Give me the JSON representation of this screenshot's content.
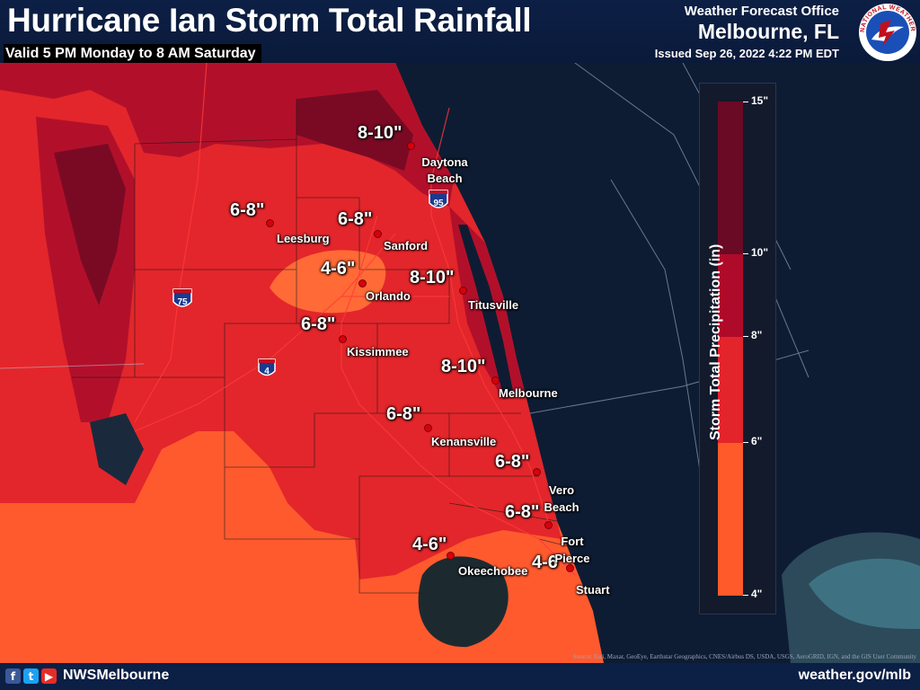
{
  "header": {
    "title": "Hurricane Ian Storm Total Rainfall",
    "valid": "Valid 5 PM Monday to 8 AM Saturday",
    "office_label": "Weather Forecast Office",
    "office_name": "Melbourne, FL",
    "issued": "Issued Sep 26, 2022 4:22 PM EDT",
    "logo_text": "NATIONAL WEATHER SERVICE"
  },
  "legend": {
    "title": "Storm Total Precipitation (in)",
    "ticks": [
      "15\"",
      "10\"",
      "8\"",
      "6\"",
      "4\""
    ],
    "bins": [
      {
        "range": "10-15",
        "color": "#6a0a24"
      },
      {
        "range": "8-10",
        "color": "#b00a2a"
      },
      {
        "range": "6-8",
        "color": "#e3242b"
      },
      {
        "range": "4-6",
        "color": "#ff5a2a"
      }
    ]
  },
  "colors": {
    "bin_4_6": "#ff6a3a",
    "bin_6_8": "#e0302a",
    "bin_8_10": "#b80f2a",
    "bin_10_15": "#7a0a22",
    "water": "#0e1c33",
    "header_bg": "#0c1f45"
  },
  "interstates": [
    "95",
    "75",
    "4"
  ],
  "amounts": [
    {
      "text": "8-10\""
    },
    {
      "text": "6-8\""
    },
    {
      "text": "6-8\""
    },
    {
      "text": "4-6\""
    },
    {
      "text": "8-10\""
    },
    {
      "text": "6-8\""
    },
    {
      "text": "8-10\""
    },
    {
      "text": "6-8\""
    },
    {
      "text": "6-8\""
    },
    {
      "text": "6-8\""
    },
    {
      "text": "4-6\""
    },
    {
      "text": "4-6\""
    }
  ],
  "cities": [
    "Daytona Beach",
    "Leesburg",
    "Sanford",
    "Orlando",
    "Titusville",
    "Kissimmee",
    "Melbourne",
    "Kenansville",
    "Vero Beach",
    "Fort Pierce",
    "Okeechobee",
    "Stuart"
  ],
  "footer": {
    "social_icons": [
      "facebook-icon",
      "twitter-icon",
      "youtube-icon"
    ],
    "handle": "NWSMelbourne",
    "website": "weather.gov/mlb",
    "attribution": "Source: Esri, Maxar, GeoEye, Earthstar Geographics, CNES/Airbus DS, USDA, USGS, AeroGRID, IGN, and the GIS User Community"
  }
}
